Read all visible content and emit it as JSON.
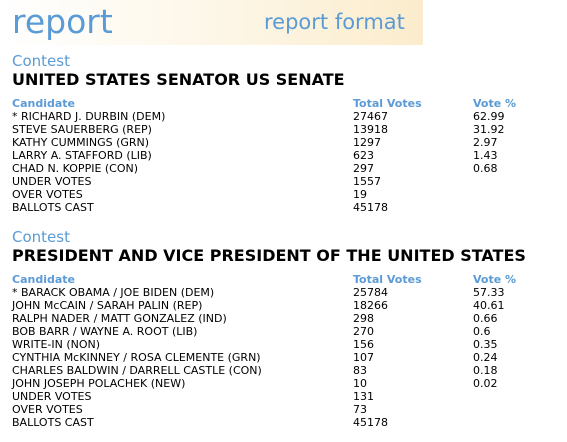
{
  "header": {
    "brand": "report",
    "tagline": "report format"
  },
  "contests": [
    {
      "label": "Contest",
      "title": "UNITED STATES SENATOR US SENATE",
      "columns": [
        "Candidate",
        "Total Votes",
        "Vote %"
      ],
      "rows": [
        {
          "candidate": "* RICHARD J. DURBIN (DEM)",
          "votes": "27467",
          "pct": "62.99"
        },
        {
          "candidate": "STEVE SAUERBERG (REP)",
          "votes": "13918",
          "pct": "31.92"
        },
        {
          "candidate": "KATHY CUMMINGS (GRN)",
          "votes": "1297",
          "pct": "2.97"
        },
        {
          "candidate": "LARRY A. STAFFORD (LIB)",
          "votes": "623",
          "pct": "1.43"
        },
        {
          "candidate": "CHAD N. KOPPIE (CON)",
          "votes": "297",
          "pct": "0.68"
        },
        {
          "candidate": "UNDER VOTES",
          "votes": "1557",
          "pct": ""
        },
        {
          "candidate": "OVER VOTES",
          "votes": "19",
          "pct": ""
        },
        {
          "candidate": "BALLOTS CAST",
          "votes": "45178",
          "pct": ""
        }
      ]
    },
    {
      "label": "Contest",
      "title": "PRESIDENT AND VICE PRESIDENT OF THE UNITED STATES",
      "columns": [
        "Candidate",
        "Total Votes",
        "Vote %"
      ],
      "rows": [
        {
          "candidate": "* BARACK OBAMA / JOE BIDEN (DEM)",
          "votes": "25784",
          "pct": "57.33"
        },
        {
          "candidate": "JOHN McCAIN / SARAH PALIN (REP)",
          "votes": "18266",
          "pct": "40.61"
        },
        {
          "candidate": "RALPH NADER / MATT GONZALEZ (IND)",
          "votes": "298",
          "pct": "0.66"
        },
        {
          "candidate": "BOB BARR / WAYNE A. ROOT (LIB)",
          "votes": "270",
          "pct": "0.6"
        },
        {
          "candidate": "WRITE-IN (NON)",
          "votes": "156",
          "pct": "0.35"
        },
        {
          "candidate": "CYNTHIA McKINNEY / ROSA CLEMENTE (GRN)",
          "votes": "107",
          "pct": "0.24"
        },
        {
          "candidate": "CHARLES BALDWIN / DARRELL CASTLE (CON)",
          "votes": "83",
          "pct": "0.18"
        },
        {
          "candidate": "JOHN JOSEPH POLACHEK (NEW)",
          "votes": "10",
          "pct": "0.02"
        },
        {
          "candidate": "UNDER VOTES",
          "votes": "131",
          "pct": ""
        },
        {
          "candidate": "OVER VOTES",
          "votes": "73",
          "pct": ""
        },
        {
          "candidate": "BALLOTS CAST",
          "votes": "45178",
          "pct": ""
        }
      ]
    }
  ]
}
